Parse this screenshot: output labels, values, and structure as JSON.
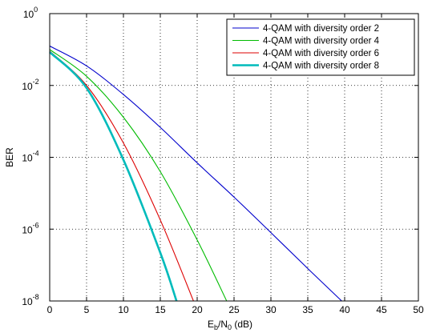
{
  "chart_data": {
    "type": "line",
    "title": "",
    "xlabel_main": "E",
    "xlabel_sub1": "b",
    "xlabel_mid": "/N",
    "xlabel_sub2": "0",
    "xlabel_tail": " (dB)",
    "ylabel": "BER",
    "xlim": [
      0,
      50
    ],
    "ylim_log10": [
      -8,
      0
    ],
    "y_scale": "log",
    "grid": true,
    "grid_style": "dotted",
    "legend_position": "top-right",
    "x_ticks": [
      0,
      5,
      10,
      15,
      20,
      25,
      30,
      35,
      40,
      45,
      50
    ],
    "x_tick_labels": [
      "0",
      "5",
      "10",
      "15",
      "20",
      "25",
      "30",
      "35",
      "40",
      "45",
      "50"
    ],
    "y_ticks_log10": [
      -8,
      -6,
      -4,
      -2,
      0
    ],
    "y_tick_labels": [
      {
        "base": "10",
        "exp": "-8"
      },
      {
        "base": "10",
        "exp": "-6"
      },
      {
        "base": "10",
        "exp": "-4"
      },
      {
        "base": "10",
        "exp": "-2"
      },
      {
        "base": "10",
        "exp": "0"
      }
    ],
    "series": [
      {
        "name": "4-QAM with diversity order 2",
        "color": "#0000cc",
        "x": [
          0,
          5,
          10,
          15,
          20,
          25,
          30,
          35,
          39.6
        ],
        "y": [
          0.125,
          0.035,
          0.0056,
          0.00068,
          7e-05,
          7.8e-06,
          8e-07,
          8e-08,
          1e-08
        ]
      },
      {
        "name": "4-QAM with diversity order 4",
        "color": "#00bb00",
        "x": [
          0,
          5,
          10,
          15,
          20,
          24
        ],
        "y": [
          0.1,
          0.018,
          0.0013,
          4e-05,
          5e-07,
          1e-08
        ]
      },
      {
        "name": "4-QAM with diversity order 6",
        "color": "#dd0000",
        "x": [
          0,
          5,
          10,
          15,
          19.5
        ],
        "y": [
          0.09,
          0.01,
          0.00025,
          1.8e-06,
          1e-08
        ]
      },
      {
        "name": "4-QAM with diversity order 8",
        "color": "#00bbbb",
        "x": [
          0,
          5,
          10,
          15,
          17.2
        ],
        "y": [
          0.085,
          0.0085,
          8.5e-05,
          2.2e-07,
          1e-08
        ]
      }
    ]
  }
}
